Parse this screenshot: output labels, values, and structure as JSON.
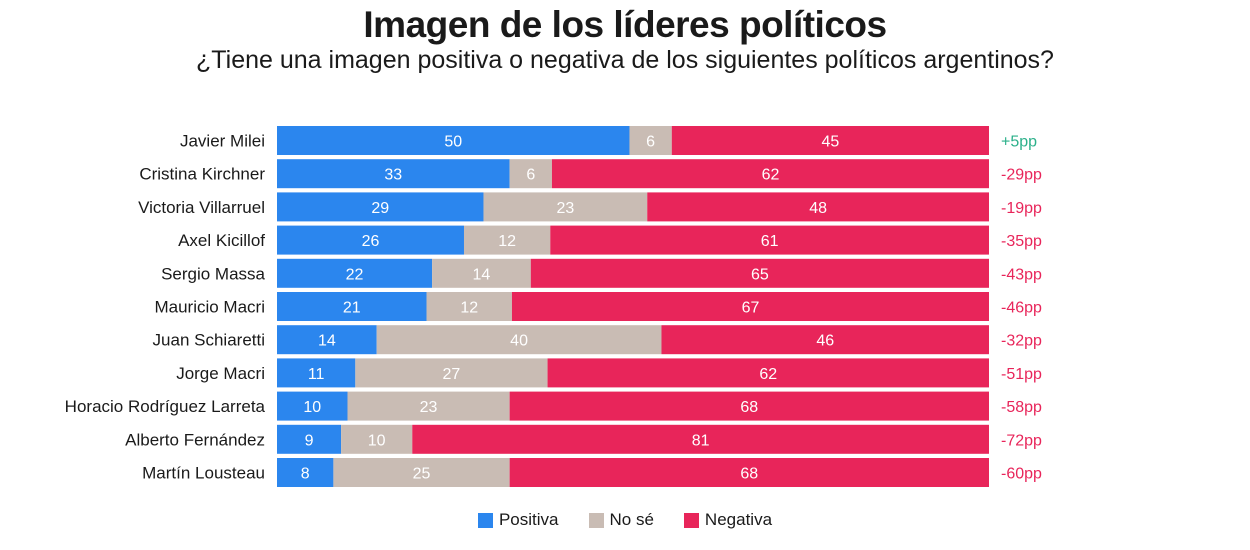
{
  "chart_data": {
    "type": "bar",
    "orientation": "horizontal",
    "stacked": true,
    "title": "Imagen de los líderes políticos",
    "subtitle": "¿Tiene una imagen positiva o negativa de los siguientes políticos argentinos?",
    "categories": [
      "Javier Milei",
      "Cristina Kirchner",
      "Victoria Villarruel",
      "Axel Kicillof",
      "Sergio Massa",
      "Mauricio Macri",
      "Juan Schiaretti",
      "Jorge Macri",
      "Horacio Rodríguez Larreta",
      "Alberto Fernández",
      "Martín Lousteau"
    ],
    "series": [
      {
        "name": "Positiva",
        "color": "#2b86ee",
        "values": [
          50,
          33,
          29,
          26,
          22,
          21,
          14,
          11,
          10,
          9,
          8
        ]
      },
      {
        "name": "No sé",
        "color": "#c9bcb4",
        "values": [
          6,
          6,
          23,
          12,
          14,
          12,
          40,
          27,
          23,
          10,
          25
        ]
      },
      {
        "name": "Negativa",
        "color": "#e8255a",
        "values": [
          45,
          62,
          48,
          61,
          65,
          67,
          46,
          62,
          68,
          81,
          68
        ]
      }
    ],
    "net_labels": [
      "+5pp",
      "-29pp",
      "-19pp",
      "-35pp",
      "-43pp",
      "-46pp",
      "-32pp",
      "-51pp",
      "-58pp",
      "-72pp",
      "-60pp"
    ],
    "net_colors": {
      "positive": "#2bb08a",
      "negative": "#e8255a"
    },
    "legend_position": "bottom"
  },
  "legend": [
    {
      "label": "Positiva",
      "color": "#2b86ee"
    },
    {
      "label": "No sé",
      "color": "#c9bcb4"
    },
    {
      "label": "Negativa",
      "color": "#e8255a"
    }
  ]
}
